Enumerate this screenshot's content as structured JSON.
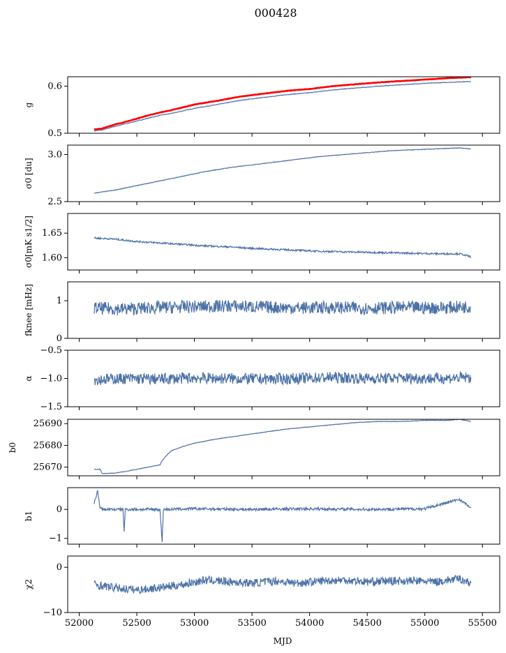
{
  "title": "000428",
  "xlabel": "MJD",
  "colors": {
    "series": "#4c72a8",
    "highlight": "#ff0000",
    "frame": "#000000"
  },
  "x_ticks": [
    52000,
    52500,
    53000,
    53500,
    54000,
    54500,
    55000,
    55500
  ],
  "chart_data": [
    {
      "type": "line",
      "id": "g",
      "ylabel": "g",
      "ylim": [
        0.5,
        0.62
      ],
      "yticks": [
        0.5,
        0.6
      ],
      "ytick_labels": [
        "0.5",
        "0.6"
      ],
      "series": [
        {
          "style": "blue",
          "x": [
            52130,
            52200,
            52300,
            52400,
            52500,
            52600,
            52700,
            52800,
            53000,
            53200,
            53400,
            53600,
            53800,
            54000,
            54200,
            54400,
            54600,
            54800,
            55000,
            55200,
            55400
          ],
          "values": [
            0.505,
            0.507,
            0.514,
            0.52,
            0.526,
            0.532,
            0.538,
            0.542,
            0.553,
            0.561,
            0.57,
            0.576,
            0.582,
            0.586,
            0.592,
            0.596,
            0.6,
            0.603,
            0.606,
            0.608,
            0.61
          ]
        },
        {
          "style": "red",
          "x": [
            52130,
            52200,
            52300,
            52400,
            52500,
            52600,
            52700,
            52800,
            53000,
            53200,
            53400,
            53600,
            53800,
            54000,
            54200,
            54400,
            54600,
            54800,
            55000,
            55200,
            55400
          ],
          "values": [
            0.508,
            0.51,
            0.518,
            0.524,
            0.531,
            0.538,
            0.544,
            0.549,
            0.561,
            0.569,
            0.578,
            0.584,
            0.59,
            0.594,
            0.6,
            0.604,
            0.608,
            0.611,
            0.614,
            0.617,
            0.619
          ]
        }
      ]
    },
    {
      "type": "line",
      "id": "sigma0-du",
      "ylabel": "σ0 [du]",
      "ylim": [
        2.5,
        3.1
      ],
      "yticks": [
        2.5,
        3.0
      ],
      "ytick_labels": [
        "2.5",
        "3.0"
      ],
      "series": [
        {
          "style": "blue",
          "x": [
            52130,
            52300,
            52500,
            52700,
            52900,
            53100,
            53300,
            53500,
            53700,
            53900,
            54100,
            54300,
            54500,
            54700,
            54900,
            55100,
            55300,
            55400
          ],
          "values": [
            2.59,
            2.62,
            2.67,
            2.72,
            2.77,
            2.82,
            2.86,
            2.89,
            2.92,
            2.95,
            2.98,
            3.0,
            3.02,
            3.04,
            3.05,
            3.06,
            3.07,
            3.06
          ]
        }
      ]
    },
    {
      "type": "line",
      "id": "sigma0-mks",
      "ylabel": "σ0[mK s1/2]",
      "ylim": [
        1.575,
        1.69
      ],
      "yticks": [
        1.6,
        1.65
      ],
      "ytick_labels": [
        "1.60",
        "1.65"
      ],
      "series": [
        {
          "style": "blue",
          "x": [
            52130,
            52300,
            52500,
            52700,
            52900,
            53100,
            53300,
            53500,
            53700,
            53900,
            54100,
            54300,
            54500,
            54700,
            54900,
            55100,
            55300,
            55400
          ],
          "values": [
            1.64,
            1.638,
            1.633,
            1.63,
            1.627,
            1.624,
            1.622,
            1.619,
            1.617,
            1.615,
            1.613,
            1.612,
            1.611,
            1.61,
            1.609,
            1.608,
            1.608,
            1.602
          ]
        }
      ]
    },
    {
      "type": "line",
      "id": "fknee",
      "ylabel": "fknee [mHz]",
      "ylim": [
        0,
        1.5
      ],
      "yticks": [
        0,
        1
      ],
      "ytick_labels": [
        "0",
        "1"
      ],
      "series": [
        {
          "style": "blue",
          "x": [
            52130,
            52400,
            52700,
            53000,
            53300,
            53600,
            53900,
            54200,
            54500,
            54800,
            55100,
            55400
          ],
          "values": [
            0.8,
            0.78,
            0.82,
            0.84,
            0.86,
            0.83,
            0.81,
            0.82,
            0.8,
            0.82,
            0.81,
            0.84
          ]
        }
      ]
    },
    {
      "type": "line",
      "id": "alpha",
      "ylabel": "α",
      "ylim": [
        -1.5,
        -0.5
      ],
      "yticks": [
        -1.5,
        -1.0,
        -0.5
      ],
      "ytick_labels": [
        "−1.5",
        "−1.0",
        "−0.5"
      ],
      "series": [
        {
          "style": "blue",
          "x": [
            52130,
            52400,
            52700,
            53000,
            53300,
            53600,
            53900,
            54200,
            54500,
            54800,
            55100,
            55400
          ],
          "values": [
            -1.02,
            -1.0,
            -1.01,
            -0.99,
            -1.0,
            -1.01,
            -1.0,
            -0.98,
            -1.0,
            -0.99,
            -1.0,
            -0.98
          ]
        }
      ]
    },
    {
      "type": "line",
      "id": "b0",
      "ylabel": "b0",
      "ylim": [
        25666,
        25692
      ],
      "yticks": [
        25670,
        25680,
        25690
      ],
      "ytick_labels": [
        "25670",
        "25680",
        "25690"
      ],
      "series": [
        {
          "style": "blue",
          "x": [
            52130,
            52180,
            52200,
            52300,
            52400,
            52500,
            52600,
            52700,
            52720,
            52760,
            52800,
            52900,
            53000,
            53200,
            53400,
            53600,
            53800,
            54000,
            54200,
            54400,
            54600,
            54800,
            55000,
            55200,
            55300,
            55400
          ],
          "values": [
            25669,
            25669,
            25667,
            25667.2,
            25668,
            25669,
            25670,
            25671,
            25673,
            25675.5,
            25677.5,
            25679.5,
            25681,
            25683,
            25684.5,
            25686,
            25687.5,
            25688.5,
            25689.5,
            25690.5,
            25691,
            25691,
            25691.5,
            25691.5,
            25692,
            25691
          ]
        }
      ]
    },
    {
      "type": "line",
      "id": "b1",
      "ylabel": "b1",
      "ylim": [
        -1.2,
        0.75
      ],
      "yticks": [
        -1,
        0
      ],
      "ytick_labels": [
        "−1",
        "0"
      ],
      "series": [
        {
          "style": "blue",
          "x": [
            52130,
            52160,
            52180,
            52200,
            52380,
            52390,
            52400,
            52700,
            52720,
            52730,
            52760,
            53000,
            53500,
            54000,
            54500,
            55000,
            55300,
            55400
          ],
          "values": [
            0.2,
            0.65,
            0.05,
            0.0,
            0.0,
            -0.75,
            0.0,
            0.0,
            -1.1,
            0.0,
            0.0,
            0.02,
            0.0,
            0.02,
            0.0,
            0.02,
            0.35,
            0.05
          ]
        }
      ]
    },
    {
      "type": "line",
      "id": "chi2",
      "ylabel": "χ2",
      "ylim": [
        -10,
        2.5
      ],
      "yticks": [
        -10,
        0
      ],
      "ytick_labels": [
        "−10",
        "0"
      ],
      "series": [
        {
          "style": "blue",
          "x": [
            52130,
            52300,
            52500,
            52700,
            52900,
            53100,
            53300,
            53500,
            53700,
            53900,
            54100,
            54300,
            54500,
            54700,
            54900,
            55100,
            55300,
            55400
          ],
          "values": [
            -3.8,
            -4.5,
            -5.0,
            -4.5,
            -3.8,
            -2.8,
            -3.2,
            -3.5,
            -3.0,
            -3.5,
            -3.0,
            -2.8,
            -3.2,
            -3.0,
            -3.0,
            -3.2,
            -2.5,
            -3.5
          ]
        }
      ]
    }
  ]
}
